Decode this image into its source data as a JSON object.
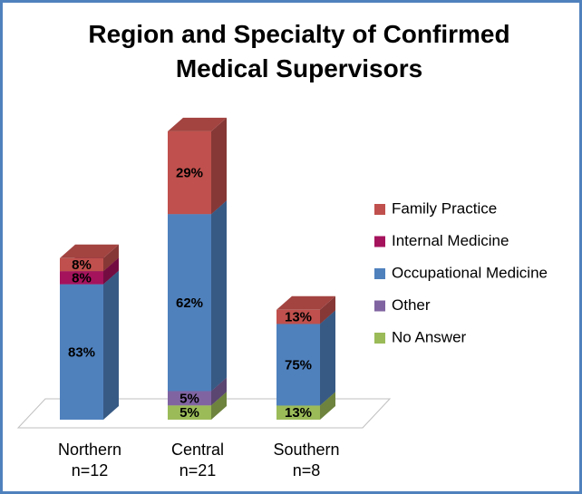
{
  "chart_data": {
    "type": "bar3d_stacked",
    "title": "Region and Specialty of Confirmed Medical Supervisors",
    "categories": [
      "Northern",
      "Central",
      "Southern"
    ],
    "sample_sizes": [
      {
        "value": 12,
        "label": "n=12"
      },
      {
        "value": 21,
        "label": "n=21"
      },
      {
        "value": 8,
        "label": "n=8"
      }
    ],
    "series": [
      {
        "name": "No Answer",
        "color": "#9bbb59",
        "values": [
          null,
          5,
          13
        ],
        "value_labels": [
          null,
          "5%",
          "13%"
        ]
      },
      {
        "name": "Other",
        "color": "#8064a2",
        "values": [
          null,
          5,
          null
        ],
        "value_labels": [
          null,
          "5%",
          null
        ]
      },
      {
        "name": "Occupational Medicine",
        "color": "#4f81bd",
        "values": [
          83,
          62,
          75
        ],
        "value_labels": [
          "83%",
          "62%",
          "75%"
        ]
      },
      {
        "name": "Internal Medicine",
        "color": "#a5135d",
        "values": [
          8,
          null,
          null
        ],
        "value_labels": [
          "8%",
          null,
          null
        ]
      },
      {
        "name": "Family Practice",
        "color": "#c0504d",
        "values": [
          8,
          29,
          13
        ],
        "value_labels": [
          "8%",
          "29%",
          "13%"
        ]
      }
    ],
    "legend": "right"
  }
}
